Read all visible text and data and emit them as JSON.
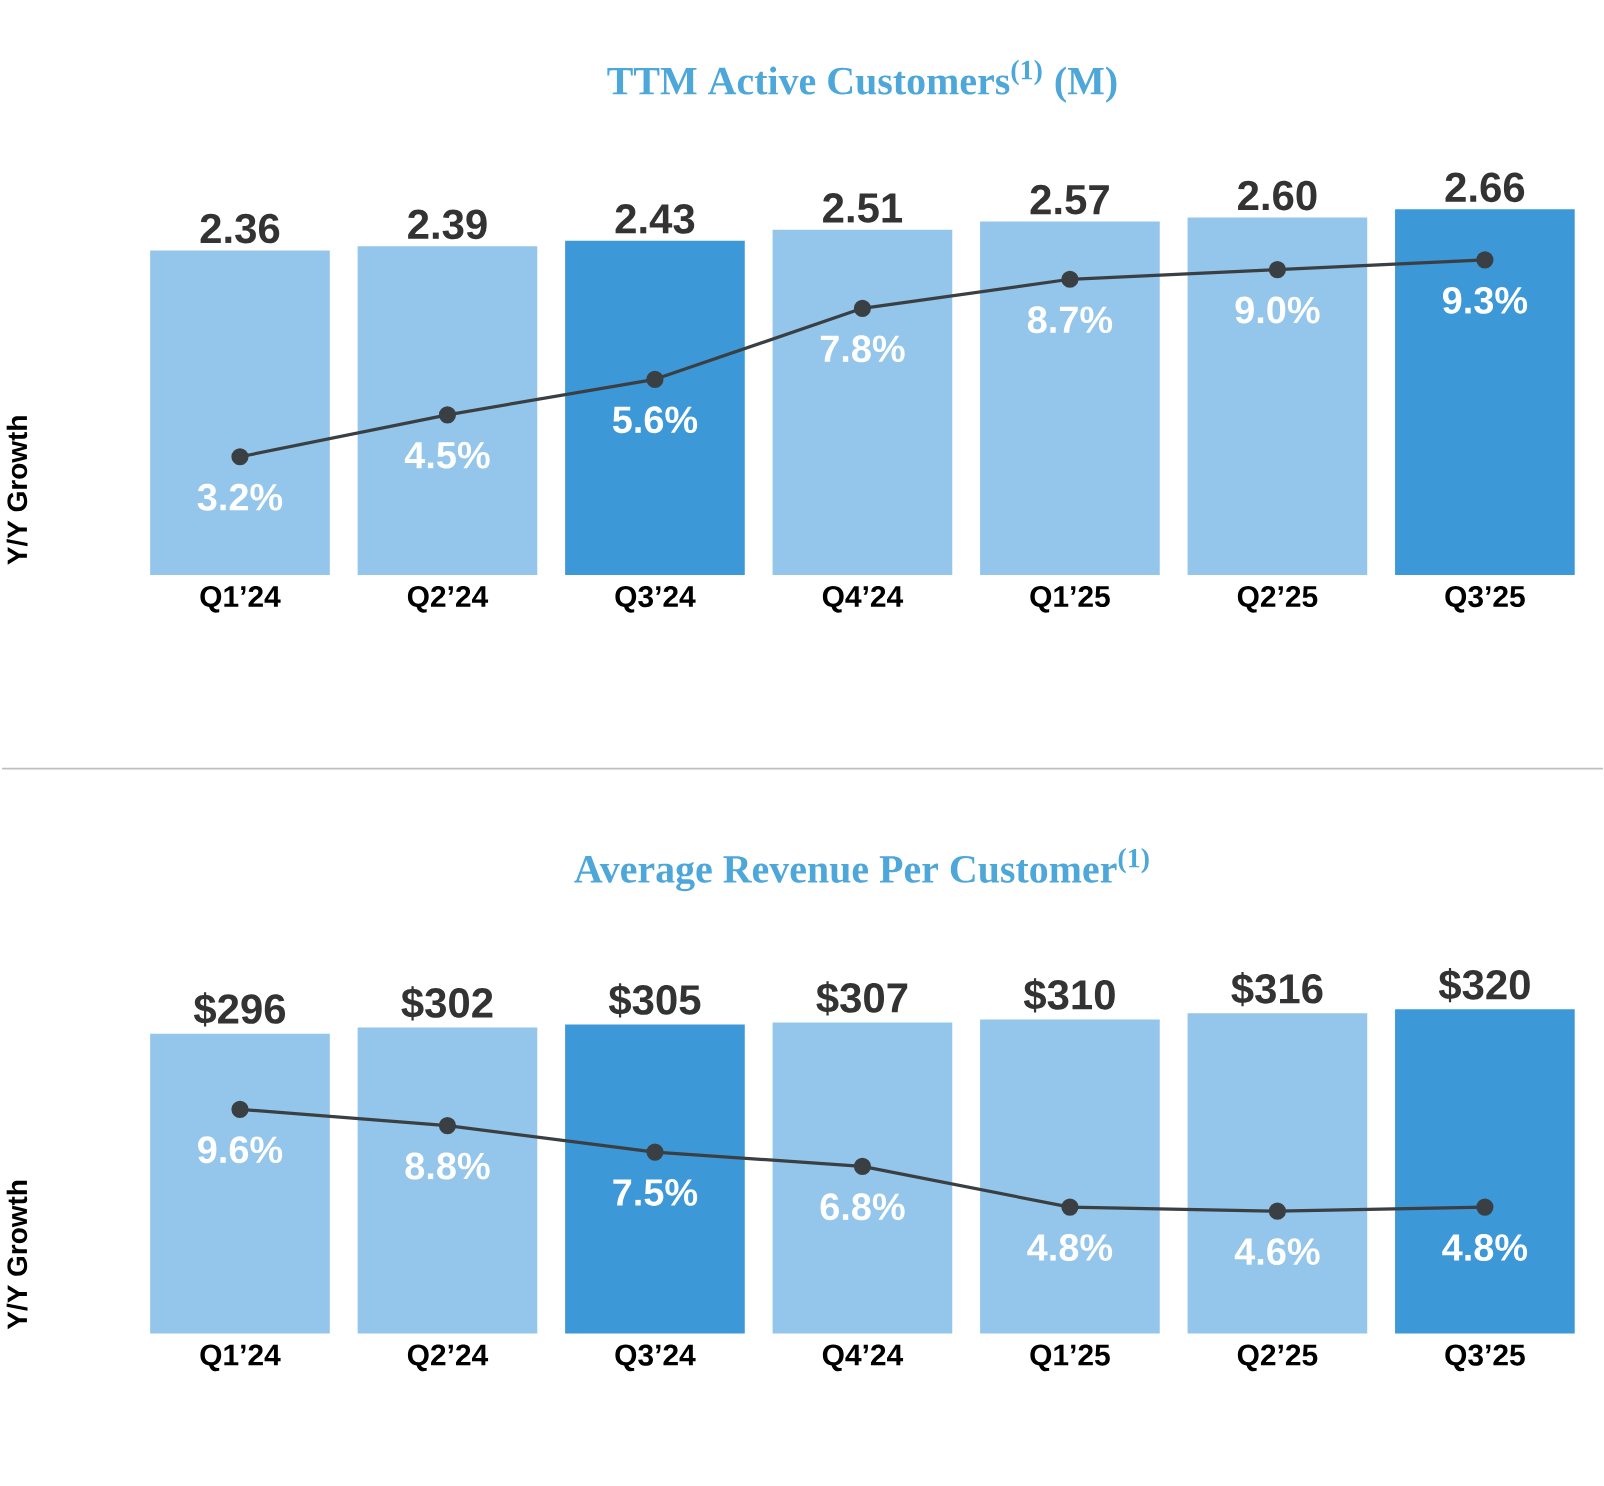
{
  "chart_data": [
    {
      "type": "bar",
      "title": "TTM Active Customers$^{(1)}$ (M)",
      "ylabel": "Y/Y Growth",
      "categories": [
        "Q1’24",
        "Q2’24",
        "Q3’24",
        "Q4’24",
        "Q1’25",
        "Q2’25",
        "Q3’25"
      ],
      "marker": "circle",
      "series": [
        {
          "colors": [
            "#93c6ea",
            "#93c6ea",
            "#3d98d8",
            "#93c6ea",
            "#93c6ea",
            "#93c6ea",
            "#3d98d8"
          ],
          "values": [
            2.36,
            2.39,
            2.43,
            2.51,
            2.57,
            2.6,
            2.66
          ],
          "value_labels": [
            "2.36",
            "2.39",
            "2.43",
            "2.51",
            "2.57",
            "2.60",
            "2.66"
          ]
        },
        {
          "type": "line",
          "axis": "y2",
          "color": "#3a3f44",
          "values": [
            3.2,
            4.5,
            5.6,
            7.8,
            8.7,
            9.0,
            9.3
          ],
          "value_labels": [
            "3.2%",
            "4.5%",
            "5.6%",
            "7.8%",
            "8.7%",
            "9.0%",
            "9.3%"
          ]
        }
      ]
    },
    {
      "type": "bar",
      "title": "Average Revenue Per Customer$^{(1)}$",
      "ylabel": "Y/Y Growth",
      "categories": [
        "Q1’24",
        "Q2’24",
        "Q3’24",
        "Q4’24",
        "Q1’25",
        "Q2’25",
        "Q3’25"
      ],
      "marker": "circle",
      "series": [
        {
          "colors": [
            "#93c6ea",
            "#93c6ea",
            "#3d98d8",
            "#93c6ea",
            "#93c6ea",
            "#93c6ea",
            "#3d98d8"
          ],
          "values": [
            296,
            302,
            305,
            307,
            310,
            316,
            320
          ],
          "value_labels": [
            "$296",
            "$302",
            "$305",
            "$307",
            "$310",
            "$316",
            "$320"
          ]
        },
        {
          "type": "line",
          "axis": "y2",
          "color": "#3a3f44",
          "values": [
            9.6,
            8.8,
            7.5,
            6.8,
            4.8,
            4.6,
            4.8
          ],
          "value_labels": [
            "9.6%",
            "8.8%",
            "7.5%",
            "6.8%",
            "4.8%",
            "4.6%",
            "4.8%"
          ]
        }
      ]
    }
  ]
}
